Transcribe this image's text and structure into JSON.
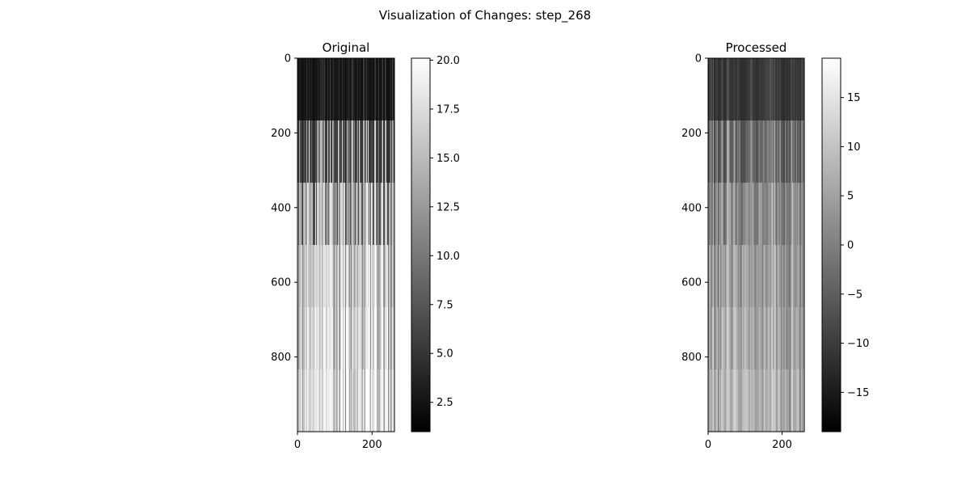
{
  "figure": {
    "title": "Visualization of Changes: step_268"
  },
  "chart_data": [
    {
      "type": "heatmap",
      "title": "Original",
      "colormap": "gray",
      "x_range": [
        0,
        260
      ],
      "y_range": [
        0,
        1000
      ],
      "y_inverted": true,
      "x_ticks": [
        0,
        200
      ],
      "y_ticks": [
        0,
        200,
        400,
        600,
        800
      ],
      "colorbar": {
        "range": [
          1,
          20.1
        ],
        "ticks": [
          2.5,
          5.0,
          7.5,
          10.0,
          12.5,
          15.0,
          17.5,
          20.0
        ],
        "tick_labels": [
          "2.5",
          "5.0",
          "7.5",
          "10.0",
          "12.5",
          "15.0",
          "17.5",
          "20.0"
        ]
      },
      "description_of_pattern": "low values near row 0, increasing with depth; column-wise stripes"
    },
    {
      "type": "heatmap",
      "title": "Processed",
      "colormap": "gray",
      "x_range": [
        0,
        260
      ],
      "y_range": [
        0,
        1000
      ],
      "y_inverted": true,
      "x_ticks": [
        0,
        200
      ],
      "y_ticks": [
        0,
        200,
        400,
        600,
        800
      ],
      "colorbar": {
        "range": [
          -19,
          19
        ],
        "ticks": [
          -15,
          -10,
          -5,
          0,
          5,
          10,
          15
        ],
        "tick_labels": [
          "−15",
          "−10",
          "−5",
          "0",
          "5",
          "10",
          "15"
        ]
      }
    }
  ]
}
